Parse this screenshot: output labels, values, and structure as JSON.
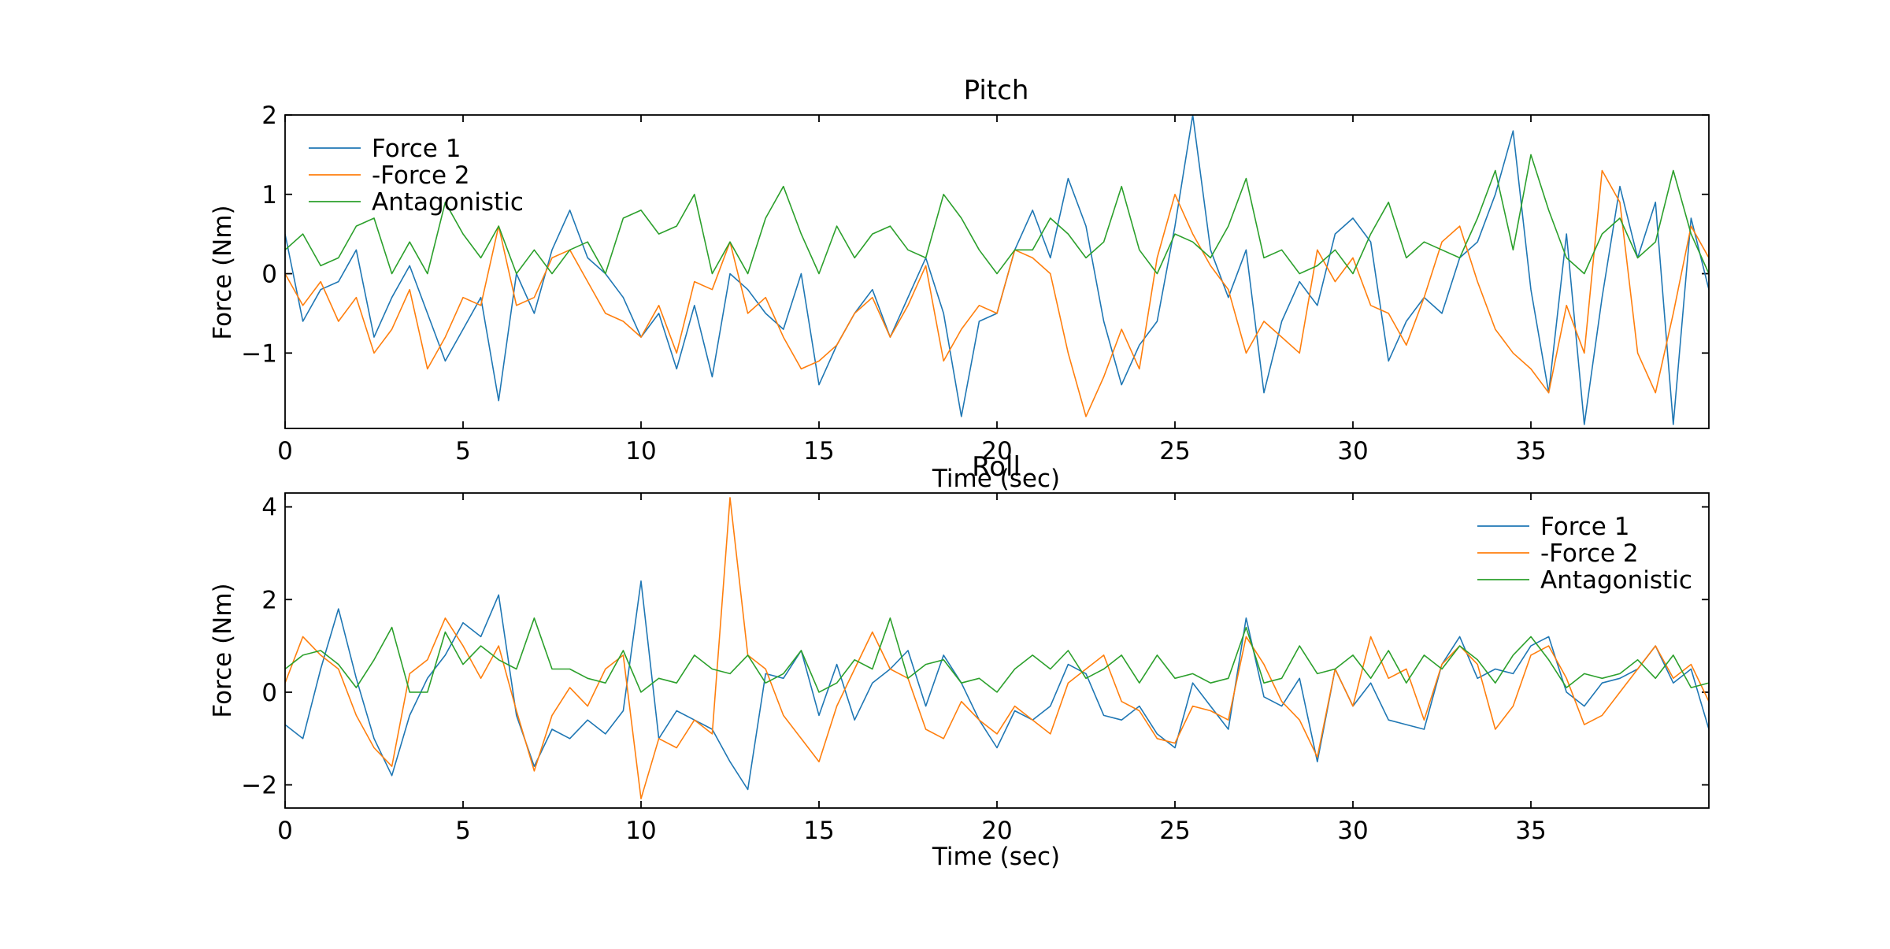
{
  "figure": {
    "background": "#ffffff",
    "colors": {
      "force1": "#1f77b4",
      "force2": "#ff7f0e",
      "antagonistic": "#2ca02c"
    }
  },
  "chart_data": [
    {
      "type": "line",
      "title": "Pitch",
      "xlabel": "Time (sec)",
      "ylabel": "Force (Nm)",
      "xlim": [
        0,
        40
      ],
      "ylim": [
        -1.95,
        2.0
      ],
      "xticks": [
        0,
        5,
        10,
        15,
        20,
        25,
        30,
        35
      ],
      "xticklabels": [
        "0",
        "5",
        "10",
        "15",
        "20",
        "25",
        "30",
        "35"
      ],
      "yticks": [
        -1,
        0,
        1,
        2
      ],
      "yticklabels": [
        "−1",
        "0",
        "1",
        "2"
      ],
      "grid": false,
      "legend": "upper-left",
      "x": [
        0,
        0.5,
        1,
        1.5,
        2,
        2.5,
        3,
        3.5,
        4,
        4.5,
        5,
        5.5,
        6,
        6.5,
        7,
        7.5,
        8,
        8.5,
        9,
        9.5,
        10,
        10.5,
        11,
        11.5,
        12,
        12.5,
        13,
        13.5,
        14,
        14.5,
        15,
        15.5,
        16,
        16.5,
        17,
        17.5,
        18,
        18.5,
        19,
        19.5,
        20,
        20.5,
        21,
        21.5,
        22,
        22.5,
        23,
        23.5,
        24,
        24.5,
        25,
        25.5,
        26,
        26.5,
        27,
        27.5,
        28,
        28.5,
        29,
        29.5,
        30,
        30.5,
        31,
        31.5,
        32,
        32.5,
        33,
        33.5,
        34,
        34.5,
        35,
        35.5,
        36,
        36.5,
        37,
        37.5,
        38,
        38.5,
        39,
        39.5,
        40
      ],
      "series": [
        {
          "name": "Force 1",
          "color": "#1f77b4",
          "values": [
            0.5,
            -0.6,
            -0.2,
            -0.1,
            0.3,
            -0.8,
            -0.3,
            0.1,
            -0.5,
            -1.1,
            -0.7,
            -0.3,
            -1.6,
            0,
            -0.5,
            0.3,
            0.8,
            0.2,
            0,
            -0.3,
            -0.8,
            -0.5,
            -1.2,
            -0.4,
            -1.3,
            0,
            -0.2,
            -0.5,
            -0.7,
            0,
            -1.4,
            -0.9,
            -0.5,
            -0.2,
            -0.8,
            -0.3,
            0.2,
            -0.5,
            -1.8,
            -0.6,
            -0.5,
            0.3,
            0.8,
            0.2,
            1.2,
            0.6,
            -0.6,
            -1.4,
            -0.9,
            -0.6,
            0.6,
            2.0,
            0.3,
            -0.3,
            0.3,
            -1.5,
            -0.6,
            -0.1,
            -0.4,
            0.5,
            0.7,
            0.4,
            -1.1,
            -0.6,
            -0.3,
            -0.5,
            0.2,
            0.4,
            1.0,
            1.8,
            -0.2,
            -1.5,
            0.5,
            -1.9,
            -0.3,
            1.1,
            0.2,
            0.9,
            -1.9,
            0.7,
            -0.2
          ]
        },
        {
          "name": "-Force 2",
          "color": "#ff7f0e",
          "values": [
            0,
            -0.4,
            -0.1,
            -0.6,
            -0.3,
            -1.0,
            -0.7,
            -0.2,
            -1.2,
            -0.8,
            -0.3,
            -0.4,
            0.6,
            -0.4,
            -0.3,
            0.2,
            0.3,
            -0.1,
            -0.5,
            -0.6,
            -0.8,
            -0.4,
            -1.0,
            -0.1,
            -0.2,
            0.4,
            -0.5,
            -0.3,
            -0.8,
            -1.2,
            -1.1,
            -0.9,
            -0.5,
            -0.3,
            -0.8,
            -0.4,
            0.1,
            -1.1,
            -0.7,
            -0.4,
            -0.5,
            0.3,
            0.2,
            0,
            -1.0,
            -1.8,
            -1.3,
            -0.7,
            -1.2,
            0.2,
            1.0,
            0.5,
            0.1,
            -0.2,
            -1.0,
            -0.6,
            -0.8,
            -1.0,
            0.3,
            -0.1,
            0.2,
            -0.4,
            -0.5,
            -0.9,
            -0.3,
            0.4,
            0.6,
            -0.1,
            -0.7,
            -1.0,
            -1.2,
            -1.5,
            -0.4,
            -1.0,
            1.3,
            0.9,
            -1.0,
            -1.5,
            -0.5,
            0.6,
            0.2
          ]
        },
        {
          "name": "Antagonistic",
          "color": "#2ca02c",
          "values": [
            0.3,
            0.5,
            0.1,
            0.2,
            0.6,
            0.7,
            0,
            0.4,
            0,
            0.9,
            0.5,
            0.2,
            0.6,
            0,
            0.3,
            0,
            0.3,
            0.4,
            0,
            0.7,
            0.8,
            0.5,
            0.6,
            1.0,
            0,
            0.4,
            0,
            0.7,
            1.1,
            0.5,
            0,
            0.6,
            0.2,
            0.5,
            0.6,
            0.3,
            0.2,
            1.0,
            0.7,
            0.3,
            0,
            0.3,
            0.3,
            0.7,
            0.5,
            0.2,
            0.4,
            1.1,
            0.3,
            0,
            0.5,
            0.4,
            0.2,
            0.6,
            1.2,
            0.2,
            0.3,
            0,
            0.1,
            0.3,
            0,
            0.5,
            0.9,
            0.2,
            0.4,
            0.3,
            0.2,
            0.7,
            1.3,
            0.3,
            1.5,
            0.8,
            0.2,
            0,
            0.5,
            0.7,
            0.2,
            0.4,
            1.3,
            0.5,
            0
          ]
        }
      ]
    },
    {
      "type": "line",
      "title": "Roll",
      "xlabel": "Time (sec)",
      "ylabel": "Force (Nm)",
      "xlim": [
        0,
        40
      ],
      "ylim": [
        -2.5,
        4.3
      ],
      "xticks": [
        0,
        5,
        10,
        15,
        20,
        25,
        30,
        35
      ],
      "xticklabels": [
        "0",
        "5",
        "10",
        "15",
        "20",
        "25",
        "30",
        "35"
      ],
      "yticks": [
        -2,
        0,
        2,
        4
      ],
      "yticklabels": [
        "−2",
        "0",
        "2",
        "4"
      ],
      "grid": false,
      "legend": "upper-right",
      "x": [
        0,
        0.5,
        1,
        1.5,
        2,
        2.5,
        3,
        3.5,
        4,
        4.5,
        5,
        5.5,
        6,
        6.5,
        7,
        7.5,
        8,
        8.5,
        9,
        9.5,
        10,
        10.5,
        11,
        11.5,
        12,
        12.5,
        13,
        13.5,
        14,
        14.5,
        15,
        15.5,
        16,
        16.5,
        17,
        17.5,
        18,
        18.5,
        19,
        19.5,
        20,
        20.5,
        21,
        21.5,
        22,
        22.5,
        23,
        23.5,
        24,
        24.5,
        25,
        25.5,
        26,
        26.5,
        27,
        27.5,
        28,
        28.5,
        29,
        29.5,
        30,
        30.5,
        31,
        31.5,
        32,
        32.5,
        33,
        33.5,
        34,
        34.5,
        35,
        35.5,
        36,
        36.5,
        37,
        37.5,
        38,
        38.5,
        39,
        39.5,
        40
      ],
      "series": [
        {
          "name": "Force 1",
          "color": "#1f77b4",
          "values": [
            -0.7,
            -1.0,
            0.5,
            1.8,
            0.3,
            -1.0,
            -1.8,
            -0.5,
            0.3,
            0.8,
            1.5,
            1.2,
            2.1,
            -0.5,
            -1.6,
            -0.8,
            -1.0,
            -0.6,
            -0.9,
            -0.4,
            2.4,
            -1.0,
            -0.4,
            -0.6,
            -0.8,
            -1.5,
            -2.1,
            0.4,
            0.3,
            0.9,
            -0.5,
            0.6,
            -0.6,
            0.2,
            0.5,
            0.9,
            -0.3,
            0.8,
            0.2,
            -0.6,
            -1.2,
            -0.4,
            -0.6,
            -0.3,
            0.6,
            0.4,
            -0.5,
            -0.6,
            -0.3,
            -0.9,
            -1.2,
            0.2,
            -0.3,
            -0.8,
            1.6,
            -0.1,
            -0.3,
            0.3,
            -1.5,
            0.5,
            -0.3,
            0.2,
            -0.6,
            -0.7,
            -0.8,
            0.6,
            1.2,
            0.3,
            0.5,
            0.4,
            1.0,
            1.2,
            0,
            -0.3,
            0.2,
            0.3,
            0.5,
            1.0,
            0.2,
            0.5,
            -0.8
          ]
        },
        {
          "name": "-Force 2",
          "color": "#ff7f0e",
          "values": [
            0.2,
            1.2,
            0.8,
            0.5,
            -0.5,
            -1.2,
            -1.6,
            0.4,
            0.7,
            1.6,
            1.0,
            0.3,
            1.0,
            -0.4,
            -1.7,
            -0.5,
            0.1,
            -0.3,
            0.5,
            0.8,
            -2.3,
            -1.0,
            -1.2,
            -0.6,
            -0.9,
            4.2,
            0.8,
            0.5,
            -0.5,
            -1.0,
            -1.5,
            -0.3,
            0.5,
            1.3,
            0.5,
            0.3,
            -0.8,
            -1.0,
            -0.2,
            -0.6,
            -0.9,
            -0.3,
            -0.6,
            -0.9,
            0.2,
            0.5,
            0.8,
            -0.2,
            -0.4,
            -1.0,
            -1.1,
            -0.3,
            -0.4,
            -0.6,
            1.2,
            0.6,
            -0.2,
            -0.6,
            -1.4,
            0.5,
            -0.3,
            1.2,
            0.3,
            0.5,
            -0.6,
            0.6,
            1.0,
            0.6,
            -0.8,
            -0.3,
            0.8,
            1.0,
            0.3,
            -0.7,
            -0.5,
            0,
            0.5,
            1.0,
            0.3,
            0.6,
            -0.2
          ]
        },
        {
          "name": "Antagonistic",
          "color": "#2ca02c",
          "values": [
            0.5,
            0.8,
            0.9,
            0.6,
            0.1,
            0.7,
            1.4,
            0,
            0,
            1.3,
            0.6,
            1.0,
            0.7,
            0.5,
            1.6,
            0.5,
            0.5,
            0.3,
            0.2,
            0.9,
            0,
            0.3,
            0.2,
            0.8,
            0.5,
            0.4,
            0.8,
            0.2,
            0.4,
            0.9,
            0,
            0.2,
            0.7,
            0.5,
            1.6,
            0.3,
            0.6,
            0.7,
            0.2,
            0.3,
            0,
            0.5,
            0.8,
            0.5,
            0.9,
            0.3,
            0.5,
            0.8,
            0.2,
            0.8,
            0.3,
            0.4,
            0.2,
            0.3,
            1.4,
            0.2,
            0.3,
            1.0,
            0.4,
            0.5,
            0.8,
            0.3,
            0.9,
            0.2,
            0.8,
            0.5,
            1.0,
            0.7,
            0.2,
            0.8,
            1.2,
            0.7,
            0.1,
            0.4,
            0.3,
            0.4,
            0.7,
            0.3,
            0.8,
            0.1,
            0.2
          ]
        }
      ]
    }
  ]
}
